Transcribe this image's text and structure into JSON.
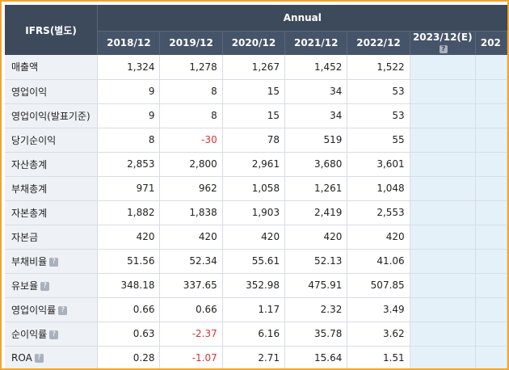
{
  "header": {
    "corner_label": "IFRS(별도)",
    "group_label": "Annual",
    "years": [
      "2018/12",
      "2019/12",
      "2020/12",
      "2021/12",
      "2022/12",
      "2023/12(E)",
      "202"
    ],
    "help_glyph": "?"
  },
  "rows": [
    {
      "label": "매출액",
      "help": false,
      "values": [
        "1,324",
        "1,278",
        "1,267",
        "1,452",
        "1,522"
      ],
      "negative": [
        false,
        false,
        false,
        false,
        false
      ]
    },
    {
      "label": "영업이익",
      "help": false,
      "values": [
        "9",
        "8",
        "15",
        "34",
        "53"
      ],
      "negative": [
        false,
        false,
        false,
        false,
        false
      ]
    },
    {
      "label": "영업이익(발표기준)",
      "help": false,
      "values": [
        "9",
        "8",
        "15",
        "34",
        "53"
      ],
      "negative": [
        false,
        false,
        false,
        false,
        false
      ]
    },
    {
      "label": "당기순이익",
      "help": false,
      "values": [
        "8",
        "-30",
        "78",
        "519",
        "55"
      ],
      "negative": [
        false,
        true,
        false,
        false,
        false
      ]
    },
    {
      "label": "자산총계",
      "help": false,
      "values": [
        "2,853",
        "2,800",
        "2,961",
        "3,680",
        "3,601"
      ],
      "negative": [
        false,
        false,
        false,
        false,
        false
      ]
    },
    {
      "label": "부채총계",
      "help": false,
      "values": [
        "971",
        "962",
        "1,058",
        "1,261",
        "1,048"
      ],
      "negative": [
        false,
        false,
        false,
        false,
        false
      ]
    },
    {
      "label": "자본총계",
      "help": false,
      "values": [
        "1,882",
        "1,838",
        "1,903",
        "2,419",
        "2,553"
      ],
      "negative": [
        false,
        false,
        false,
        false,
        false
      ]
    },
    {
      "label": "자본금",
      "help": false,
      "values": [
        "420",
        "420",
        "420",
        "420",
        "420"
      ],
      "negative": [
        false,
        false,
        false,
        false,
        false
      ]
    },
    {
      "label": "부채비율",
      "help": true,
      "values": [
        "51.56",
        "52.34",
        "55.61",
        "52.13",
        "41.06"
      ],
      "negative": [
        false,
        false,
        false,
        false,
        false
      ]
    },
    {
      "label": "유보율",
      "help": true,
      "values": [
        "348.18",
        "337.65",
        "352.98",
        "475.91",
        "507.85"
      ],
      "negative": [
        false,
        false,
        false,
        false,
        false
      ]
    },
    {
      "label": "영업이익률",
      "help": true,
      "values": [
        "0.66",
        "0.66",
        "1.17",
        "2.32",
        "3.49"
      ],
      "negative": [
        false,
        false,
        false,
        false,
        false
      ]
    },
    {
      "label": "순이익률",
      "help": true,
      "values": [
        "0.63",
        "-2.37",
        "6.16",
        "35.78",
        "3.62"
      ],
      "negative": [
        false,
        true,
        false,
        false,
        false
      ]
    },
    {
      "label": "ROA",
      "help": true,
      "values": [
        "0.28",
        "-1.07",
        "2.71",
        "15.64",
        "1.51"
      ],
      "negative": [
        false,
        true,
        false,
        false,
        false
      ]
    }
  ],
  "colors": {
    "header_bg": "#3d4a5c",
    "label_bg": "#eef1f6",
    "estimate_bg": "#e4f1f9",
    "negative_text": "#e0312e",
    "frame_border": "#f0a532"
  }
}
